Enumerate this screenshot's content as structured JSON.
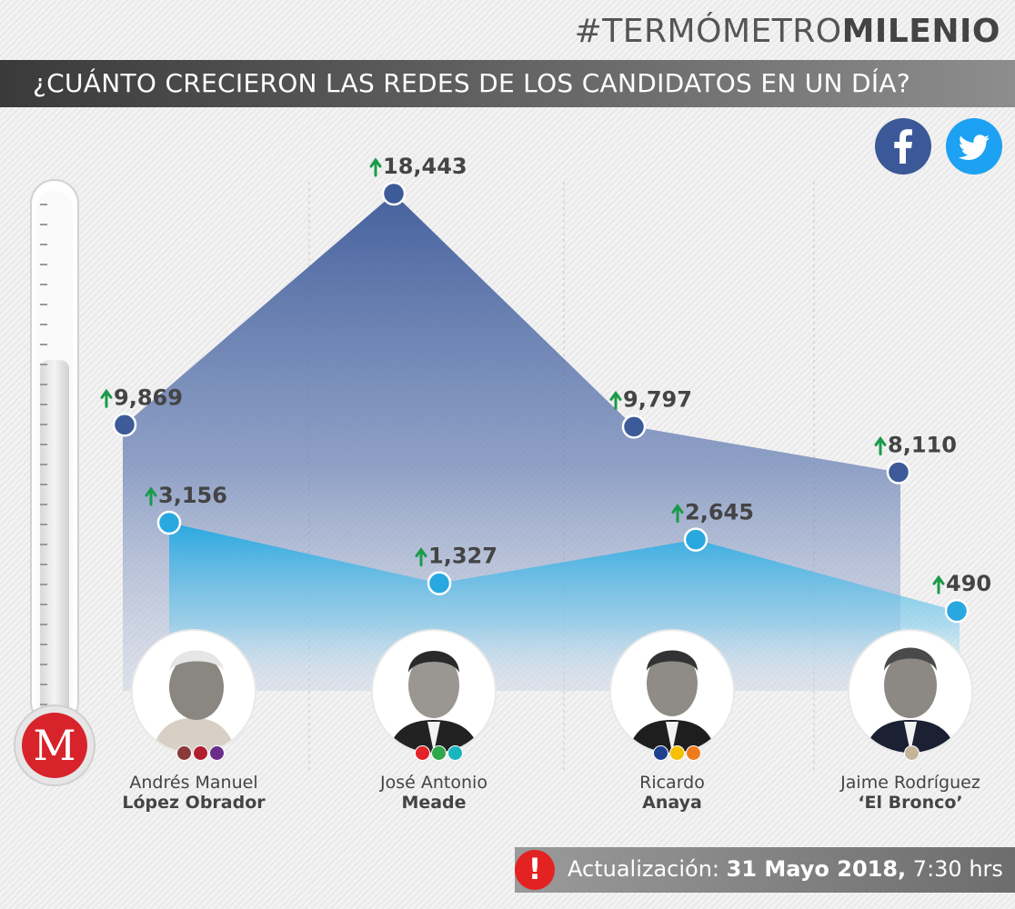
{
  "header": {
    "brand_light": "#TERMÓMETRO",
    "brand_bold": "MILENIO",
    "title": "¿CUÁNTO CRECIERON LAS REDES DE LOS CANDIDATOS EN UN DÍA?"
  },
  "icons": {
    "facebook": "facebook-icon",
    "twitter": "twitter-icon",
    "logo": "milenio-logo-icon",
    "alert": "alert-icon"
  },
  "logo_letter": "M",
  "colors": {
    "facebook": "#3b5998",
    "twitter": "#1da1f2",
    "facebook_series": "#3d5a99",
    "twitter_series": "#29a8e0",
    "arrow": "#1a9a4a",
    "alert": "#e32222"
  },
  "candidates": [
    {
      "line1": "Andrés Manuel",
      "line2": "López Obrador",
      "party_dots": [
        "#8a3a3a",
        "#b01f2e",
        "#6b2d8a"
      ]
    },
    {
      "line1": "José Antonio",
      "line2": "Meade",
      "party_dots": [
        "#e3222a",
        "#2ea84a",
        "#19b5c0"
      ]
    },
    {
      "line1": "Ricardo",
      "line2": "Anaya",
      "party_dots": [
        "#1f3f8f",
        "#f5c000",
        "#f07a1a"
      ]
    },
    {
      "line1": "Jaime Rodríguez",
      "line2": "‘El Bronco’",
      "party_dots": [
        "#c4b49a"
      ]
    }
  ],
  "chart_data": {
    "type": "area",
    "categories": [
      "Andrés Manuel López Obrador",
      "José Antonio Meade",
      "Ricardo Anaya",
      "Jaime Rodríguez ‘El Bronco’"
    ],
    "series": [
      {
        "key": "facebook",
        "values": [
          9869,
          18443,
          9797,
          8110
        ],
        "labels": [
          "9,869",
          "18,443",
          "9,797",
          "8,110"
        ],
        "color": "#3d5a99"
      },
      {
        "key": "twitter",
        "values": [
          3156,
          1327,
          2645,
          490
        ],
        "labels": [
          "3,156",
          "1,327",
          "2,645",
          "490"
        ],
        "color": "#29a8e0"
      }
    ]
  },
  "footer": {
    "label": "Actualización:",
    "date": "31 Mayo 2018,",
    "time": "7:30 hrs",
    "alert_symbol": "!"
  }
}
